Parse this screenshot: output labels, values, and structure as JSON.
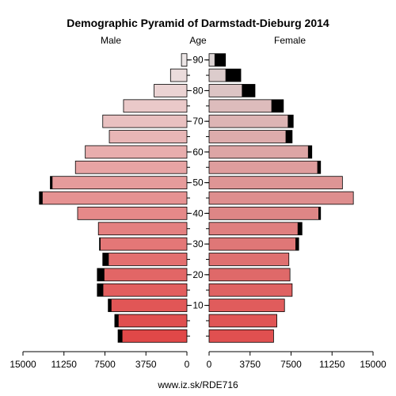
{
  "chart_data": {
    "type": "population-pyramid",
    "title": "Demographic Pyramid of Darmstadt-Dieburg 2014",
    "left_label": "Male",
    "center_label": "Age",
    "right_label": "Female",
    "footer": "www.iz.sk/RDE716",
    "x_max": 15000,
    "x_ticks_left": [
      "15000",
      "11250",
      "7500",
      "3750",
      "0"
    ],
    "x_ticks_right": [
      "0",
      "3750",
      "7500",
      "11250",
      "15000"
    ],
    "x_tick_values": [
      15000,
      11250,
      7500,
      3750,
      0
    ],
    "age_ticks": [
      {
        "age": 10,
        "label": "10"
      },
      {
        "age": 20,
        "label": "20"
      },
      {
        "age": 30,
        "label": "30"
      },
      {
        "age": 40,
        "label": "40"
      },
      {
        "age": 50,
        "label": "50"
      },
      {
        "age": 60,
        "label": "60"
      },
      {
        "age": 70,
        "label": "70"
      },
      {
        "age": 80,
        "label": "80"
      },
      {
        "age": 90,
        "label": "90"
      }
    ],
    "age_groups": [
      "0-4",
      "5-9",
      "10-14",
      "15-19",
      "20-24",
      "25-29",
      "30-34",
      "35-39",
      "40-44",
      "45-49",
      "50-54",
      "55-59",
      "60-64",
      "65-69",
      "70-74",
      "75-79",
      "80-84",
      "85-89",
      "90+"
    ],
    "male_total": [
      6300,
      6600,
      7200,
      8200,
      8200,
      7700,
      8000,
      8100,
      10000,
      13500,
      12500,
      10200,
      9300,
      7100,
      7700,
      5800,
      3000,
      1500,
      500
    ],
    "male_excess": [
      400,
      350,
      300,
      550,
      650,
      550,
      100,
      0,
      0,
      300,
      200,
      0,
      0,
      0,
      0,
      0,
      0,
      0,
      0
    ],
    "female_total": [
      5900,
      6200,
      6900,
      7600,
      7400,
      7300,
      8200,
      8500,
      10200,
      13200,
      12200,
      10200,
      9400,
      7600,
      7700,
      6800,
      4200,
      2900,
      1500
    ],
    "female_excess": [
      0,
      0,
      0,
      0,
      0,
      0,
      300,
      400,
      200,
      0,
      0,
      300,
      350,
      600,
      500,
      1100,
      1200,
      1400,
      1000
    ],
    "colors": {
      "male_young": "#e04848",
      "male_old": "#ece6e6",
      "female_young": "#e05050",
      "female_old": "#dcd4d4",
      "excess": "#000000"
    }
  }
}
